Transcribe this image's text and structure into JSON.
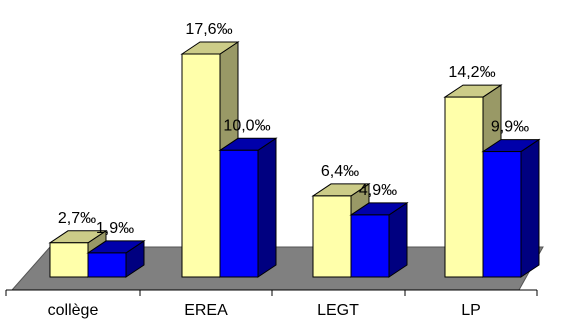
{
  "chart_data": {
    "type": "bar",
    "categories": [
      "collège",
      "EREA",
      "LEGT",
      "LP"
    ],
    "series": [
      {
        "values": [
          2.7,
          17.6,
          6.4,
          14.2
        ],
        "labels": [
          "2,7‰",
          "17,6‰",
          "6,4‰",
          "14,2‰"
        ]
      },
      {
        "values": [
          1.9,
          10.0,
          4.9,
          9.9
        ],
        "labels": [
          "1,9‰",
          "10,0‰",
          "4,9‰",
          "9,9‰"
        ]
      }
    ],
    "title": "",
    "xlabel": "",
    "ylabel": "",
    "ylim": [
      0,
      17.6
    ],
    "grid": false,
    "legend": "none",
    "three_d": true
  },
  "colors": {
    "series1_front": "#FFFFAA",
    "series1_top": "#CCCC88",
    "series1_side": "#999966",
    "series2_front": "#0000FF",
    "series2_top": "#0000AA",
    "series2_side": "#000080",
    "floor": "#808080",
    "floor_edge": "#555555"
  }
}
